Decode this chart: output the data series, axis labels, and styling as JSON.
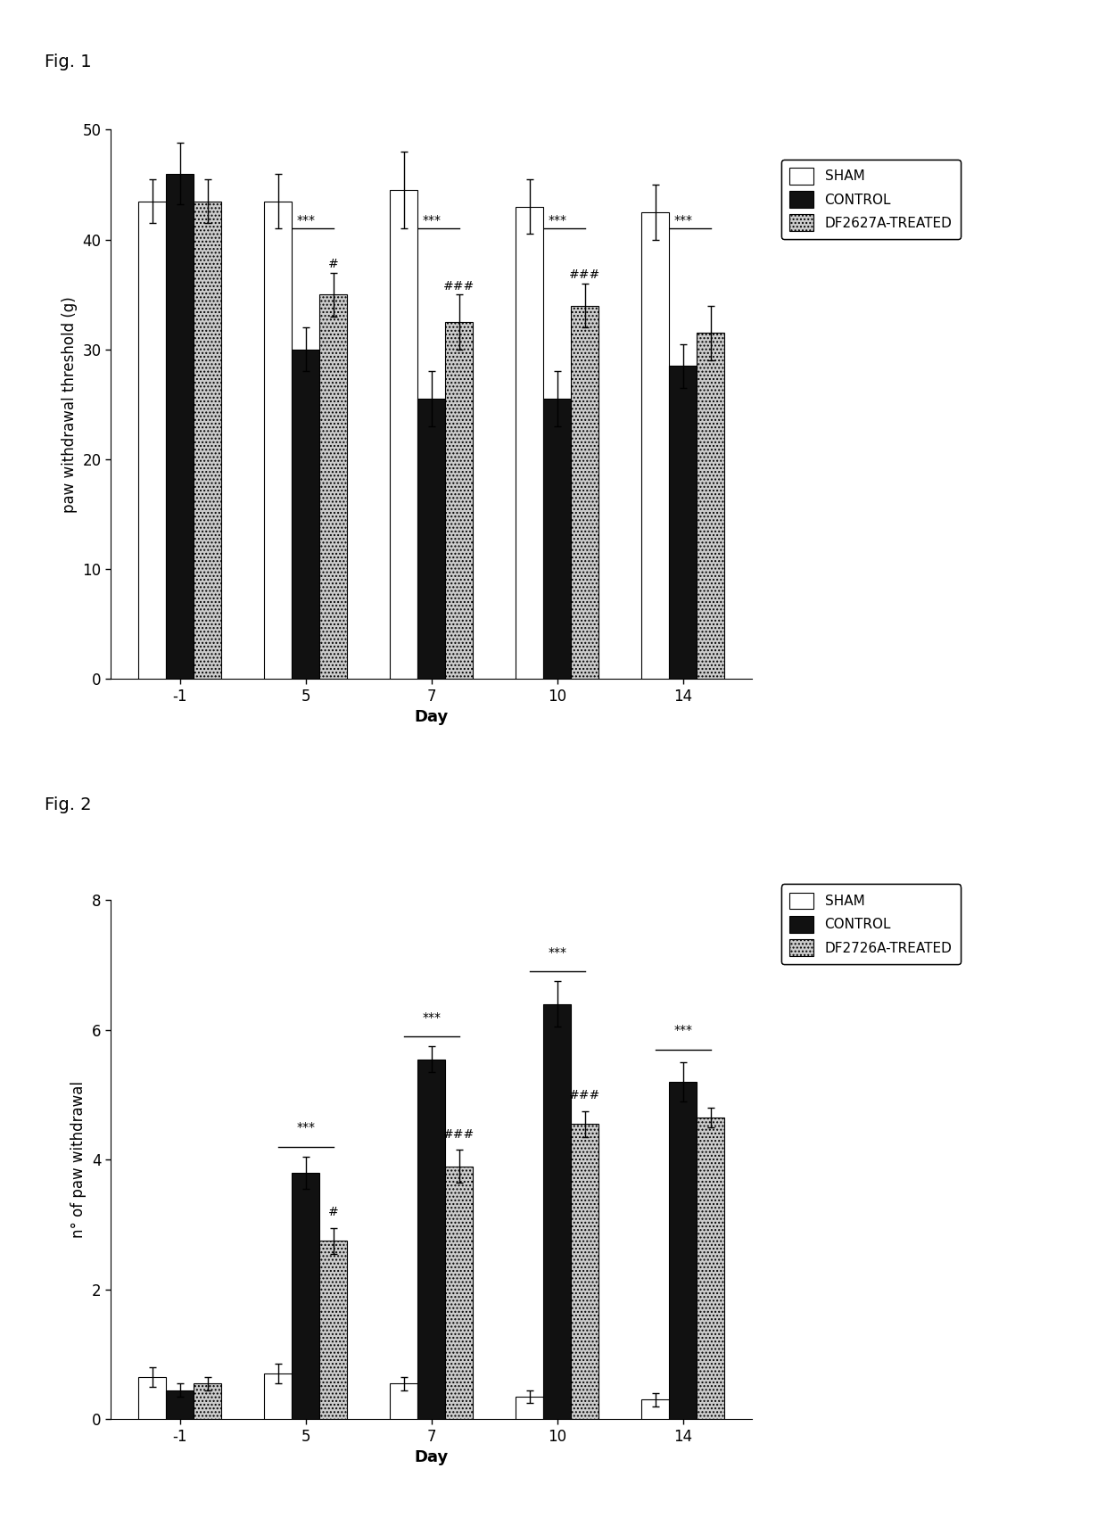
{
  "fig1": {
    "title": "Fig. 1",
    "ylabel": "paw withdrawal threshold (g)",
    "xlabel": "Day",
    "days": [
      -1,
      5,
      7,
      10,
      14
    ],
    "sham": [
      43.5,
      43.5,
      44.5,
      43.0,
      42.5
    ],
    "control": [
      46.0,
      30.0,
      25.5,
      25.5,
      28.5
    ],
    "treated": [
      43.5,
      35.0,
      32.5,
      34.0,
      31.5
    ],
    "sham_err": [
      2.0,
      2.5,
      3.5,
      2.5,
      2.5
    ],
    "control_err": [
      2.8,
      2.0,
      2.5,
      2.5,
      2.0
    ],
    "treated_err": [
      2.0,
      2.0,
      2.5,
      2.0,
      2.5
    ],
    "ylim": [
      0,
      50
    ],
    "yticks": [
      0,
      10,
      20,
      30,
      40,
      50
    ],
    "legend_labels": [
      "SHAM",
      "CONTROL",
      "DF2627A-TREATED"
    ],
    "sig_stars": [
      {
        "day_idx": 1,
        "text": "***",
        "y": 41.0
      },
      {
        "day_idx": 2,
        "text": "***",
        "y": 41.0
      },
      {
        "day_idx": 3,
        "text": "***",
        "y": 41.0
      },
      {
        "day_idx": 4,
        "text": "***",
        "y": 41.0
      }
    ],
    "hash_marks": [
      {
        "day_idx": 1,
        "text": "#",
        "y": 37.2
      },
      {
        "day_idx": 2,
        "text": "###",
        "y": 35.2
      },
      {
        "day_idx": 3,
        "text": "###",
        "y": 36.2
      }
    ]
  },
  "fig2": {
    "title": "Fig. 2",
    "ylabel": "n° of paw withdrawal",
    "xlabel": "Day",
    "days": [
      -1,
      5,
      7,
      10,
      14
    ],
    "sham": [
      0.65,
      0.7,
      0.55,
      0.35,
      0.3
    ],
    "control": [
      0.45,
      3.8,
      5.55,
      6.4,
      5.2
    ],
    "treated": [
      0.55,
      2.75,
      3.9,
      4.55,
      4.65
    ],
    "sham_err": [
      0.15,
      0.15,
      0.1,
      0.1,
      0.1
    ],
    "control_err": [
      0.1,
      0.25,
      0.2,
      0.35,
      0.3
    ],
    "treated_err": [
      0.1,
      0.2,
      0.25,
      0.2,
      0.15
    ],
    "ylim": [
      0,
      8
    ],
    "yticks": [
      0,
      2,
      4,
      6,
      8
    ],
    "legend_labels": [
      "SHAM",
      "CONTROL",
      "DF2726A-TREATED"
    ],
    "sig_stars": [
      {
        "day_idx": 1,
        "text": "***",
        "y": 4.2
      },
      {
        "day_idx": 2,
        "text": "***",
        "y": 5.9
      },
      {
        "day_idx": 3,
        "text": "***",
        "y": 6.9
      },
      {
        "day_idx": 4,
        "text": "***",
        "y": 5.7
      }
    ],
    "hash_marks": [
      {
        "day_idx": 1,
        "text": "#",
        "y": 3.1
      },
      {
        "day_idx": 2,
        "text": "###",
        "y": 4.3
      },
      {
        "day_idx": 3,
        "text": "###",
        "y": 4.9
      }
    ]
  },
  "bar_width": 0.22,
  "colors": {
    "sham": "#ffffff",
    "control": "#111111",
    "treated": "#cccccc"
  },
  "edgecolor": "#000000",
  "background": "#ffffff",
  "figsize": [
    12.4,
    17.11
  ],
  "dpi": 100
}
